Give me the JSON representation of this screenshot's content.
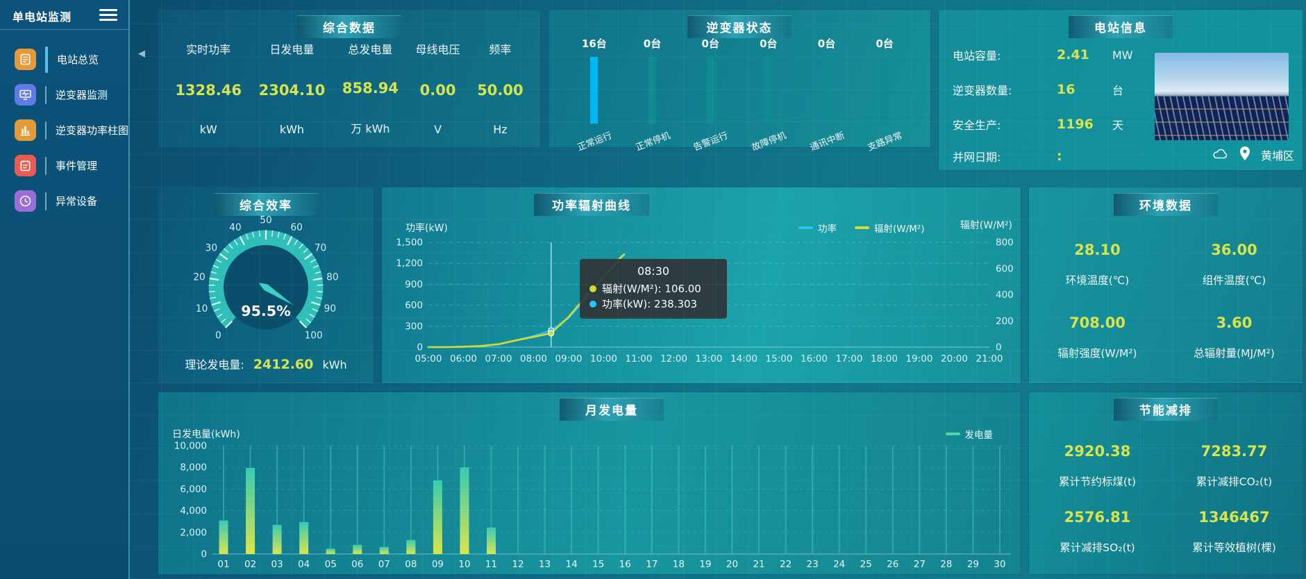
{
  "app": {
    "title": "单电站监测"
  },
  "sidebar": {
    "items": [
      {
        "label": "电站总览",
        "icon": "overview",
        "color": "#e59a3a",
        "active": true
      },
      {
        "label": "逆变器监测",
        "icon": "inverter-monitor",
        "color": "#5f7be8",
        "active": false
      },
      {
        "label": "逆变器功率柱图",
        "icon": "power-bars",
        "color": "#e59a3a",
        "active": false
      },
      {
        "label": "事件管理",
        "icon": "events",
        "color": "#ef5a50",
        "active": false
      },
      {
        "label": "异常设备",
        "icon": "abnormal",
        "color": "#9a6ed6",
        "active": false
      }
    ]
  },
  "overview": {
    "title": "综合数据",
    "metrics": [
      {
        "label": "实时功率",
        "value": "1328.46",
        "unit": "kW"
      },
      {
        "label": "日发电量",
        "value": "2304.10",
        "unit": "kWh"
      },
      {
        "label": "总发电量",
        "value": "858.94",
        "unit": "万 kWh"
      },
      {
        "label": "母线电压",
        "value": "0.00",
        "unit": "V"
      },
      {
        "label": "频率",
        "value": "50.00",
        "unit": "Hz"
      }
    ]
  },
  "inverter_status": {
    "title": "逆变器状态",
    "bar_colors": {
      "running": "#00b7f0",
      "idle": "#0f8b91"
    },
    "items": [
      {
        "count": "16台",
        "label": "正常运行",
        "highlight": true
      },
      {
        "count": "0台",
        "label": "正常停机",
        "highlight": false
      },
      {
        "count": "0台",
        "label": "告警运行",
        "highlight": false
      },
      {
        "count": "0台",
        "label": "故障停机",
        "highlight": false
      },
      {
        "count": "0台",
        "label": "通讯中断",
        "highlight": false
      },
      {
        "count": "0台",
        "label": "支路异常",
        "highlight": false
      }
    ]
  },
  "station_info": {
    "title": "电站信息",
    "rows": [
      {
        "label": "电站容量:",
        "value": "2.41",
        "unit": "MW"
      },
      {
        "label": "逆变器数量:",
        "value": "16",
        "unit": "台"
      },
      {
        "label": "安全生产:",
        "value": "1196",
        "unit": "天"
      },
      {
        "label": "并网日期:",
        "value": ":",
        "unit": ""
      }
    ],
    "location": "黄埔区"
  },
  "efficiency": {
    "title": "综合效率",
    "gauge": {
      "value": 95.5,
      "display": "95.5%",
      "min": 0,
      "max": 100,
      "tick_labels": [
        "0",
        "10",
        "20",
        "30",
        "40",
        "50",
        "60",
        "70",
        "80",
        "90",
        "100"
      ]
    },
    "theory": {
      "label": "理论发电量:",
      "value": "2412.60",
      "unit": "kWh"
    }
  },
  "environment": {
    "title": "环境数据",
    "metrics": [
      {
        "value": "28.10",
        "label": "环境温度(℃)"
      },
      {
        "value": "36.00",
        "label": "组件温度(℃)"
      },
      {
        "value": "708.00",
        "label": "辐射强度(W/M²)"
      },
      {
        "value": "3.60",
        "label": "总辐射量(MJ/M²)"
      }
    ]
  },
  "energy_saving": {
    "title": "节能减排",
    "metrics": [
      {
        "value": "2920.38",
        "label": "累计节约标煤(t)"
      },
      {
        "value": "7283.77",
        "label": "累计减排CO₂(t)"
      },
      {
        "value": "2576.81",
        "label": "累计减排SO₂(t)"
      },
      {
        "value": "1346467",
        "label": "累计等效植树(棵)"
      }
    ]
  },
  "chart_data": [
    {
      "id": "power-radiation-curve",
      "type": "line",
      "title": "功率辐射曲线",
      "left_axis": {
        "label": "功率(kW)",
        "ticks": [
          "1,500",
          "1,200",
          "900",
          "600",
          "300",
          "0"
        ],
        "max": 1500
      },
      "right_axis": {
        "label": "辐射(W/M²)",
        "ticks": [
          "800",
          "600",
          "400",
          "200",
          "0"
        ],
        "max": 800
      },
      "x_labels": [
        "05:00",
        "06:00",
        "07:00",
        "08:00",
        "09:00",
        "10:00",
        "11:00",
        "12:00",
        "13:00",
        "14:00",
        "15:00",
        "16:00",
        "17:00",
        "18:00",
        "19:00",
        "20:00",
        "21:00"
      ],
      "legend": [
        {
          "name": "功率",
          "color": "#29c2f2"
        },
        {
          "name": "辐射(W/M²)",
          "color": "#d3da31"
        }
      ],
      "series": [
        {
          "name": "功率",
          "axis": "left",
          "color": "#29c2f2",
          "points": [
            [
              "05:00",
              0
            ],
            [
              "05:30",
              1
            ],
            [
              "06:00",
              5
            ],
            [
              "06:30",
              15
            ],
            [
              "07:00",
              40
            ],
            [
              "07:30",
              95
            ],
            [
              "08:00",
              160
            ],
            [
              "08:30",
              238.3
            ],
            [
              "09:00",
              420
            ],
            [
              "09:30",
              700
            ],
            [
              "10:00",
              1000
            ],
            [
              "10:30",
              1280
            ],
            [
              "10:35",
              1328
            ]
          ]
        },
        {
          "name": "辐射(W/M²)",
          "axis": "right",
          "color": "#d3da31",
          "points": [
            [
              "05:00",
              0
            ],
            [
              "05:30",
              0
            ],
            [
              "06:00",
              3
            ],
            [
              "06:30",
              9
            ],
            [
              "07:00",
              22
            ],
            [
              "07:30",
              52
            ],
            [
              "08:00",
              78
            ],
            [
              "08:30",
              106
            ],
            [
              "09:00",
              230
            ],
            [
              "09:30",
              390
            ],
            [
              "10:00",
              540
            ],
            [
              "10:30",
              690
            ],
            [
              "10:35",
              708
            ]
          ]
        }
      ],
      "hover": {
        "x": "08:30",
        "time": "08:30",
        "rows": [
          {
            "color": "#d3da31",
            "text": "辐射(W/M²): 106.00"
          },
          {
            "color": "#29c2f2",
            "text": "功率(kW): 238.303"
          }
        ]
      }
    },
    {
      "id": "monthly-generation",
      "type": "bar",
      "title": "月发电量",
      "ylabel": "日发电量(kWh)",
      "legend": [
        {
          "name": "发电量",
          "color": "#52d6a4"
        }
      ],
      "y_ticks": [
        "10,000",
        "8,000",
        "6,000",
        "4,000",
        "2,000",
        "0"
      ],
      "ymax": 10000,
      "categories": [
        "01",
        "02",
        "03",
        "04",
        "05",
        "06",
        "07",
        "08",
        "09",
        "10",
        "11",
        "12",
        "13",
        "14",
        "15",
        "16",
        "17",
        "18",
        "19",
        "20",
        "21",
        "22",
        "23",
        "24",
        "25",
        "26",
        "27",
        "28",
        "29",
        "30"
      ],
      "values": [
        3100,
        7950,
        2700,
        2950,
        500,
        850,
        650,
        1300,
        6800,
        8000,
        2450,
        0,
        0,
        0,
        0,
        0,
        0,
        0,
        0,
        0,
        0,
        0,
        0,
        0,
        0,
        0,
        0,
        0,
        0,
        0
      ],
      "bar_gradient": [
        "#37cbb2",
        "#dbe44d"
      ]
    }
  ]
}
